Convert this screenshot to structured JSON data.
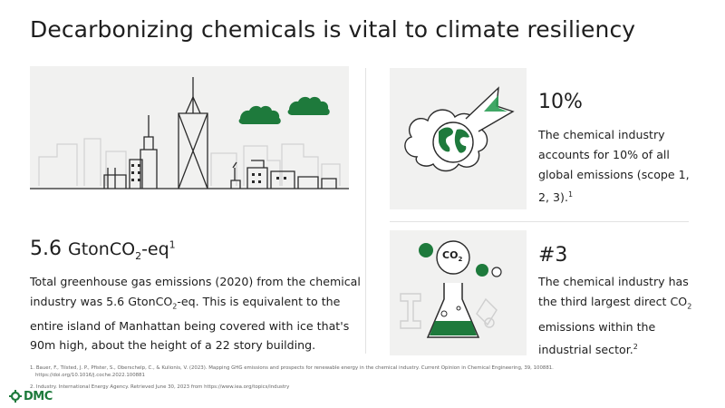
{
  "slide": {
    "title": "Decarbonizing chemicals is vital to climate resiliency"
  },
  "left": {
    "big_value": "5.6",
    "big_unit_prefix": "GtonCO",
    "big_unit_sub": "2",
    "big_unit_suffix": "-eq",
    "big_sup": "1",
    "desc_part1": "Total greenhouse gas emissions (2020) from the chemical industry was 5.6 GtonCO",
    "desc_sub": "2",
    "desc_part2": "-eq. This is equivalent to the entire island of Manhattan being covered with ice that's 90m high, about the height of a 22 story building."
  },
  "right_top": {
    "stat": "10%",
    "text": "The chemical industry accounts for 10% of all global emissions (scope 1, 2, 3).",
    "sup": "1"
  },
  "right_bottom": {
    "stat": "#3",
    "text_part1": "The chemical industry has the third largest direct CO",
    "text_sub": "2",
    "text_part2": " emissions within the industrial sector.",
    "sup": "2",
    "co2_label": "CO",
    "co2_sub": "2"
  },
  "footnotes": {
    "note1_line1": "1.  Bauer, F., Tilsted, J. P., Pfister, S., Oberschelp, C., & Kulionis, V. (2023). Mapping GHG emissions and prospects for renewable energy in the chemical industry. Current Opinion in Chemical Engineering, 39, 100881.",
    "note1_line2": "https://doi.org/10.1016/j.coche.2022.100881",
    "note2": "2.  Industry. International Energy Agency. Retrieved June 30, 2023 from https://www.iea.org/topics/industry"
  },
  "brand": {
    "logo_text": "DMC",
    "accent": "#1e7a3c"
  }
}
